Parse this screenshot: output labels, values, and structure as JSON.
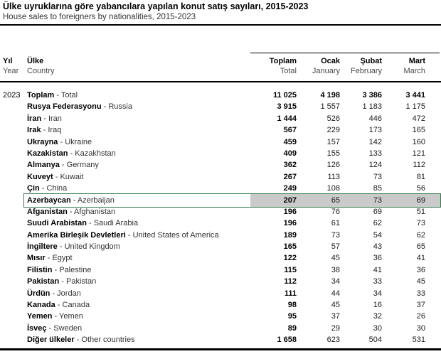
{
  "title": "Ülke uyruklarına göre yabancılara yapılan konut satış sayıları, 2015-2023",
  "subtitle": "House sales to foreigners by nationalities, 2015-2023",
  "colors": {
    "selection_border": "#2e7d4f",
    "selection_fill": "#cacaca",
    "rule": "#000000"
  },
  "table": {
    "year": "2023",
    "name_separator": " - ",
    "header": {
      "year": {
        "tr": "Yıl",
        "en": "Year"
      },
      "country": {
        "tr": "Ülke",
        "en": "Country"
      },
      "columns": [
        {
          "tr": "Toplam",
          "en": "Total"
        },
        {
          "tr": "Ocak",
          "en": "January"
        },
        {
          "tr": "Şubat",
          "en": "February"
        },
        {
          "tr": "Mart",
          "en": "March"
        }
      ]
    },
    "rows": [
      {
        "tr": "Toplam",
        "en": "Total",
        "v": [
          "11 025",
          "4 198",
          "3 386",
          "3 441"
        ],
        "total_row": true
      },
      {
        "tr": "Rusya Federasyonu",
        "en": "Russia",
        "v": [
          "3 915",
          "1 557",
          "1 183",
          "1 175"
        ]
      },
      {
        "tr": "İran",
        "en": "Iran",
        "v": [
          "1 444",
          "526",
          "446",
          "472"
        ]
      },
      {
        "tr": "Irak",
        "en": "Iraq",
        "v": [
          "567",
          "229",
          "173",
          "165"
        ]
      },
      {
        "tr": "Ukrayna",
        "en": "Ukraine",
        "v": [
          "459",
          "157",
          "142",
          "160"
        ]
      },
      {
        "tr": "Kazakistan",
        "en": "Kazakhstan",
        "v": [
          "409",
          "155",
          "133",
          "121"
        ]
      },
      {
        "tr": "Almanya",
        "en": "Germany",
        "v": [
          "362",
          "126",
          "124",
          "112"
        ]
      },
      {
        "tr": "Kuveyt",
        "en": "Kuwait",
        "v": [
          "267",
          "113",
          "73",
          "81"
        ]
      },
      {
        "tr": "Çin",
        "en": "China",
        "v": [
          "249",
          "108",
          "85",
          "56"
        ]
      },
      {
        "tr": "Azerbaycan",
        "en": "Azerbaijan",
        "v": [
          "207",
          "65",
          "73",
          "69"
        ],
        "highlighted": true
      },
      {
        "tr": "Afganistan",
        "en": "Afghanistan",
        "v": [
          "196",
          "76",
          "69",
          "51"
        ]
      },
      {
        "tr": "Suudi Arabistan",
        "en": "Saudi Arabia",
        "v": [
          "196",
          "61",
          "62",
          "73"
        ]
      },
      {
        "tr": "Amerika Birleşik Devletleri",
        "en": "United States of America",
        "v": [
          "189",
          "73",
          "54",
          "62"
        ]
      },
      {
        "tr": "İngiltere",
        "en": "United Kingdom",
        "v": [
          "165",
          "57",
          "43",
          "65"
        ]
      },
      {
        "tr": "Mısır",
        "en": "Egypt",
        "v": [
          "122",
          "45",
          "36",
          "41"
        ]
      },
      {
        "tr": "Filistin",
        "en": "Palestine",
        "v": [
          "115",
          "38",
          "41",
          "36"
        ]
      },
      {
        "tr": "Pakistan",
        "en": "Pakistan",
        "v": [
          "112",
          "34",
          "33",
          "45"
        ]
      },
      {
        "tr": "Ürdün",
        "en": "Jordan",
        "v": [
          "111",
          "44",
          "34",
          "33"
        ]
      },
      {
        "tr": "Kanada",
        "en": "Canada",
        "v": [
          "98",
          "45",
          "16",
          "37"
        ]
      },
      {
        "tr": "Yemen",
        "en": "Yemen",
        "v": [
          "95",
          "37",
          "32",
          "26"
        ]
      },
      {
        "tr": "İsveç",
        "en": "Sweden",
        "v": [
          "89",
          "29",
          "30",
          "30"
        ]
      },
      {
        "tr": "Diğer ülkeler",
        "en": "Other countries",
        "v": [
          "1 658",
          "623",
          "504",
          "531"
        ]
      }
    ]
  }
}
